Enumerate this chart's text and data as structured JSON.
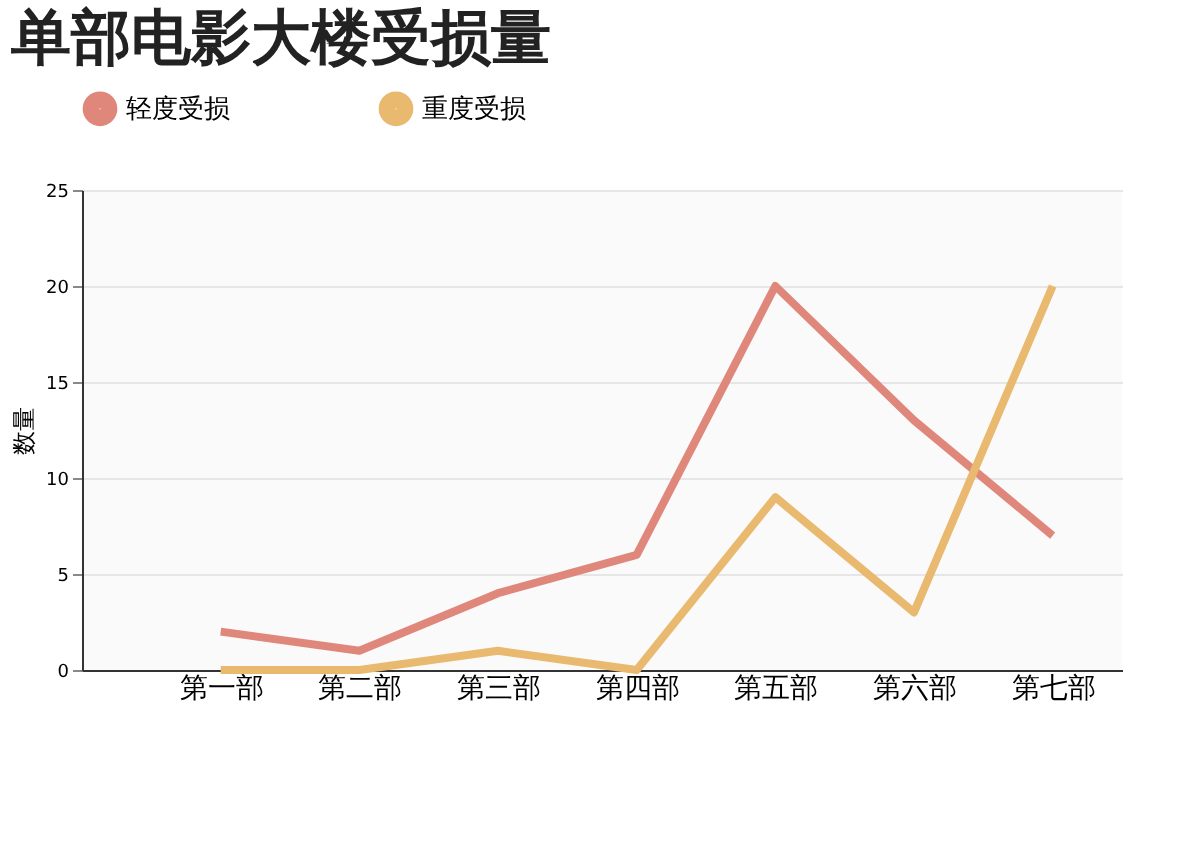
{
  "chart_data": {
    "type": "line",
    "title": "单部电影大楼受损量",
    "ylabel": "数量",
    "categories": [
      "第一部",
      "第二部",
      "第三部",
      "第四部",
      "第五部",
      "第六部",
      "第七部"
    ],
    "series": [
      {
        "name": "轻度受损",
        "color": "#e0877c",
        "values": [
          2,
          1,
          4,
          6,
          20,
          13,
          7
        ]
      },
      {
        "name": "重度受损",
        "color": "#e8b96e",
        "values": [
          0,
          0,
          1,
          0,
          9,
          3,
          20
        ]
      }
    ],
    "ylim": [
      0,
      25
    ],
    "yticks": [
      0,
      5,
      10,
      15,
      20,
      25
    ],
    "grid": "y",
    "legend": "top left",
    "marker": "none",
    "line_style": "solid"
  }
}
